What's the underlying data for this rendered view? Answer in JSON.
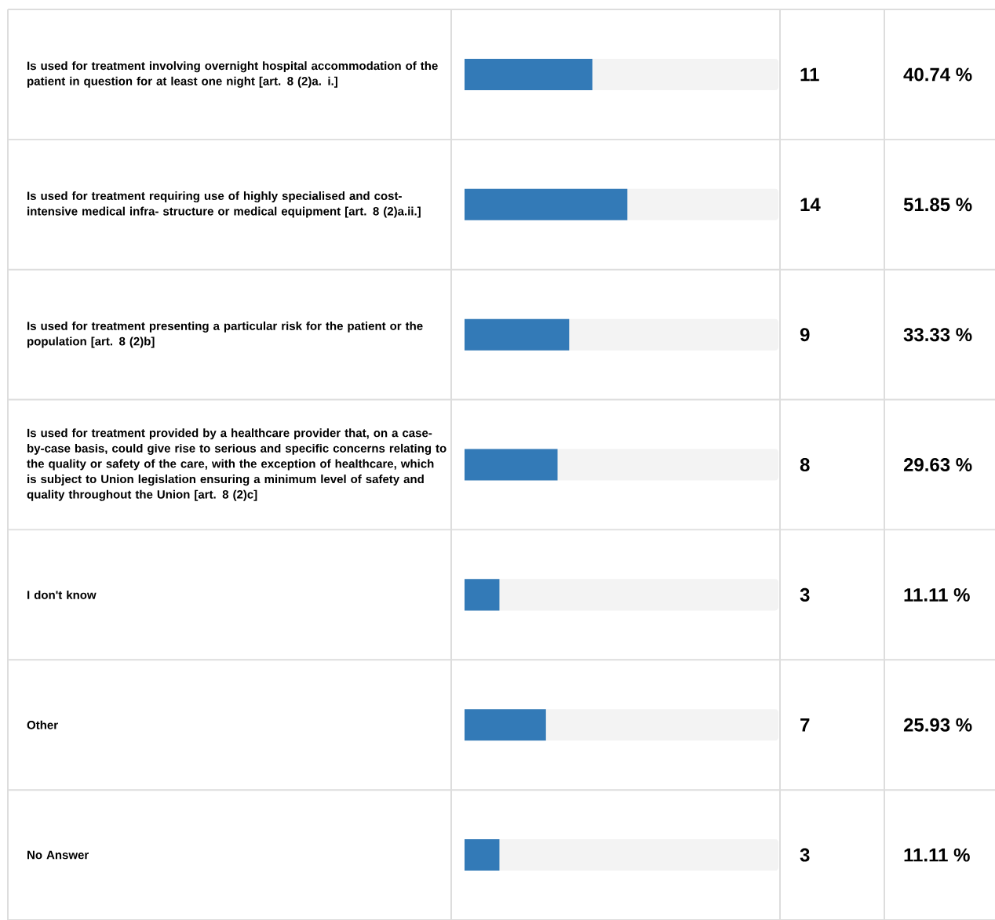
{
  "chart_data": {
    "type": "bar",
    "orientation": "horizontal",
    "color": "#337ab7",
    "categories": [
      "Is used for treatment involving overnight hospital accommodation of the patient in question for at least one night [art. 8 (2)a. i.]",
      "Is used for treatment requiring use of highly specialised and cost-intensive medical infra- structure or medical equipment [art. 8 (2)a.ii.]",
      "Is used for treatment presenting a particular risk for the patient or the population [art. 8 (2)b]",
      "Is used for treatment provided by a healthcare provider that, on a case-by-case basis, could give rise to serious and specific concerns relating to the quality or safety of the care, with the exception of healthcare, which is subject to Union legislation ensuring a minimum level of safety and quality throughout the Union [art. 8 (2)c]",
      "I don't know",
      "Other",
      "No Answer"
    ],
    "values": [
      40.74,
      51.85,
      33.33,
      29.63,
      11.11,
      25.93,
      11.11
    ],
    "value_labels": [
      "40.74 %",
      "51.85 %",
      "33.33 %",
      "29.63 %",
      "11.11 %",
      "25.93 %",
      "11.11 %"
    ],
    "xlim": [
      0,
      100
    ],
    "annotations": [
      "11",
      "14",
      "9",
      "8",
      "3",
      "7",
      "3"
    ]
  }
}
